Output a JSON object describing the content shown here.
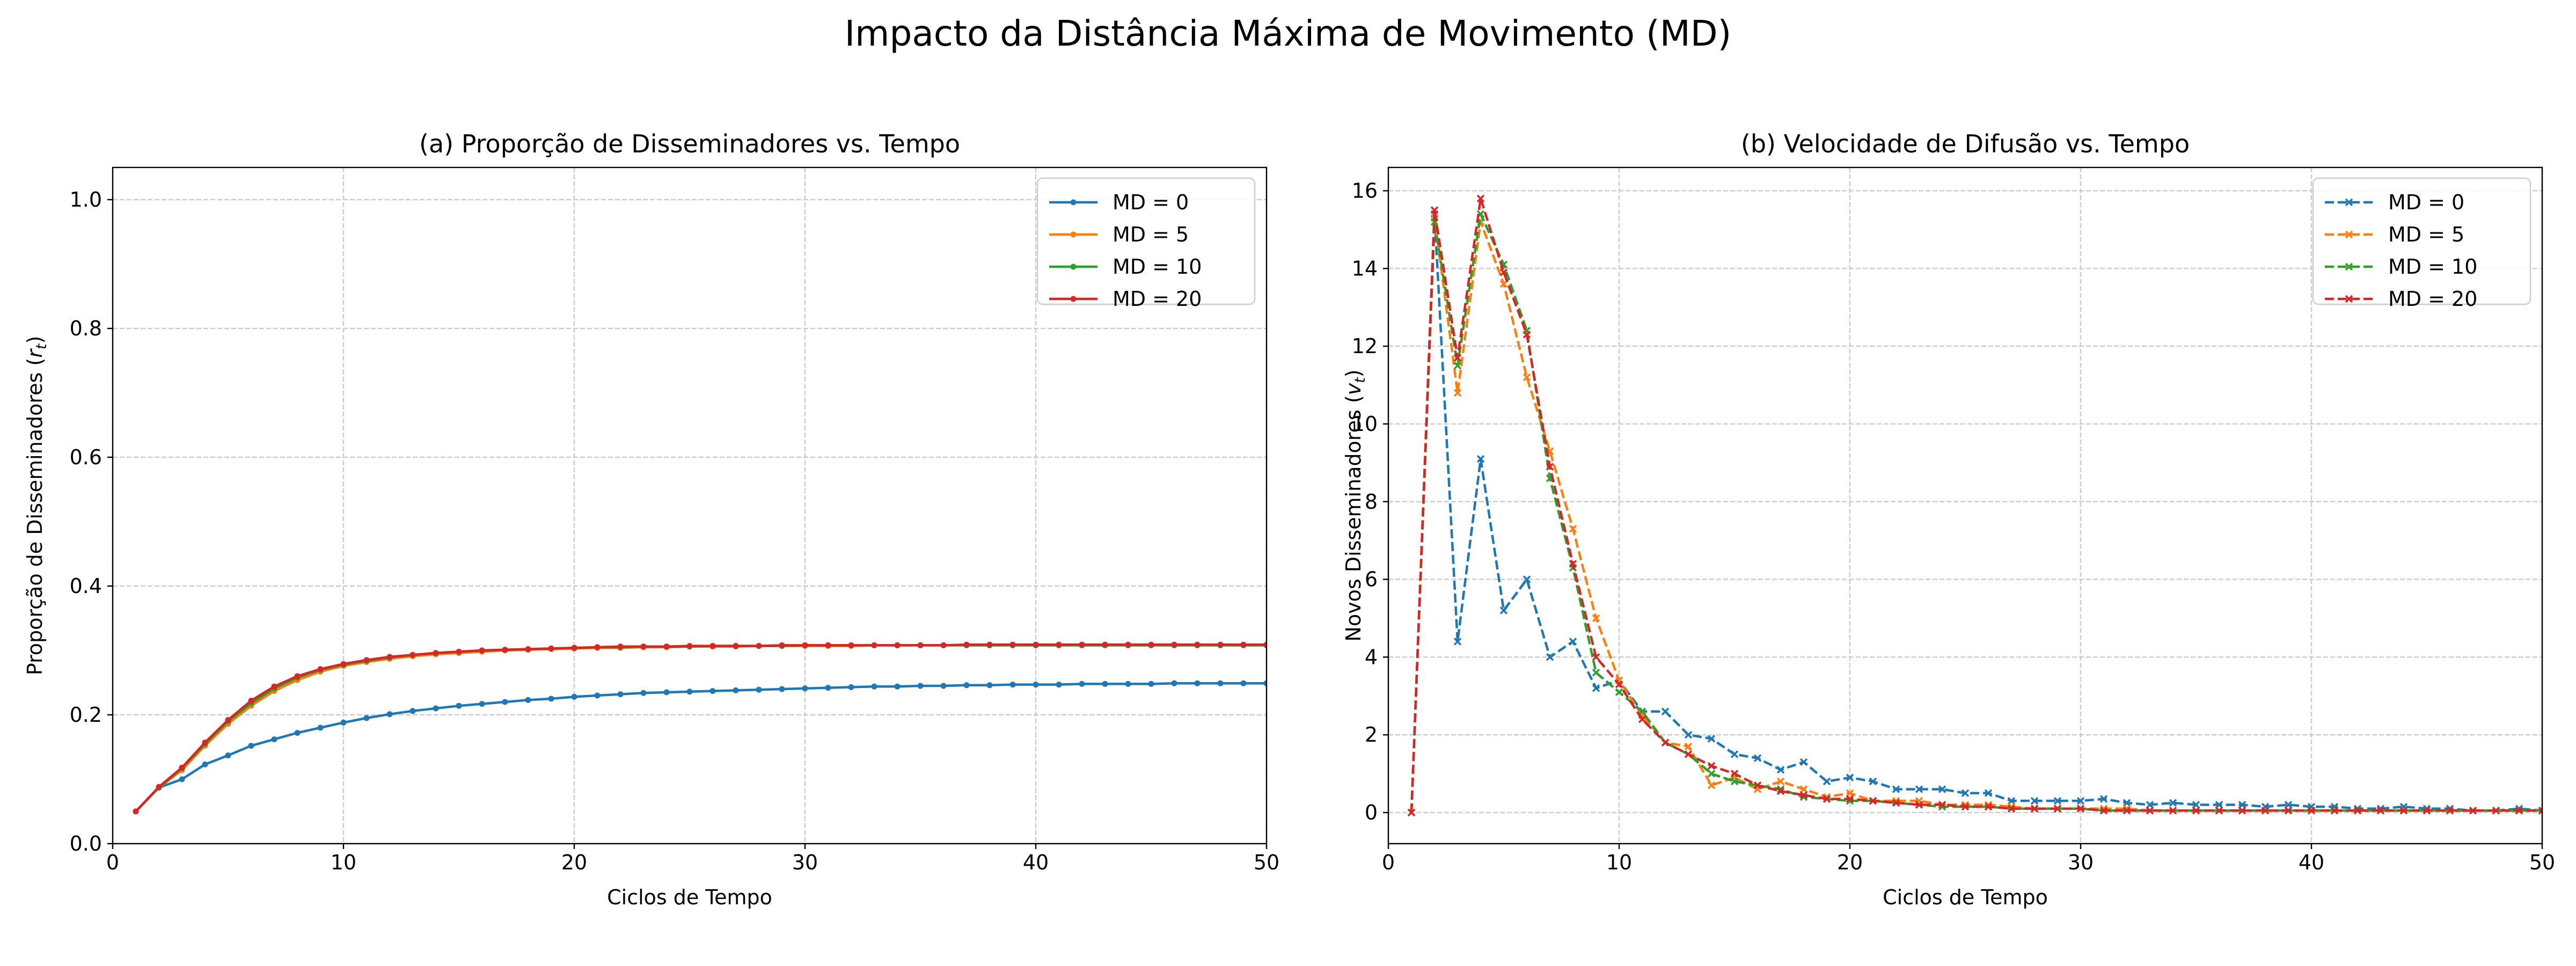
{
  "figure": {
    "title": "Impacto da Distância Máxima de Movimento (MD)"
  },
  "colors": {
    "md0": "#1f77b4",
    "md5": "#ff7f0e",
    "md10": "#2ca02c",
    "md20": "#d62728",
    "grid": "#cccccc"
  },
  "chart_data": [
    {
      "type": "line",
      "title": "(a) Proporção de Disseminadores vs. Tempo",
      "xlabel": "Ciclos de Tempo",
      "ylabel": "Proporção de Disseminadores (r_t)",
      "xlim": [
        0,
        50
      ],
      "ylim": [
        0,
        1.05
      ],
      "xticks": [
        0,
        10,
        20,
        30,
        40,
        50
      ],
      "yticks": [
        0.0,
        0.2,
        0.4,
        0.6,
        0.8,
        1.0
      ],
      "ytick_labels": [
        "0.0",
        "0.2",
        "0.4",
        "0.6",
        "0.8",
        "1.0"
      ],
      "grid": true,
      "legend": "top-right",
      "marker": "dot",
      "linestyle": "solid",
      "x": [
        1,
        2,
        3,
        4,
        5,
        6,
        7,
        8,
        9,
        10,
        11,
        12,
        13,
        14,
        15,
        16,
        17,
        18,
        19,
        20,
        21,
        22,
        23,
        24,
        25,
        26,
        27,
        28,
        29,
        30,
        31,
        32,
        33,
        34,
        35,
        36,
        37,
        38,
        39,
        40,
        41,
        42,
        43,
        44,
        45,
        46,
        47,
        48,
        49,
        50
      ],
      "series": [
        {
          "name": "MD = 0",
          "color": "#1f77b4",
          "values": [
            0.05,
            0.087,
            0.1,
            0.123,
            0.137,
            0.152,
            0.162,
            0.172,
            0.18,
            0.188,
            0.195,
            0.201,
            0.206,
            0.21,
            0.214,
            0.217,
            0.22,
            0.223,
            0.225,
            0.228,
            0.23,
            0.232,
            0.234,
            0.235,
            0.236,
            0.237,
            0.238,
            0.239,
            0.24,
            0.241,
            0.242,
            0.243,
            0.244,
            0.244,
            0.245,
            0.245,
            0.246,
            0.246,
            0.247,
            0.247,
            0.247,
            0.248,
            0.248,
            0.248,
            0.248,
            0.249,
            0.249,
            0.249,
            0.249,
            0.249
          ]
        },
        {
          "name": "MD = 5",
          "color": "#ff7f0e",
          "values": [
            0.05,
            0.087,
            0.114,
            0.152,
            0.186,
            0.214,
            0.237,
            0.254,
            0.267,
            0.276,
            0.282,
            0.287,
            0.291,
            0.294,
            0.296,
            0.298,
            0.3,
            0.301,
            0.302,
            0.303,
            0.304,
            0.304,
            0.305,
            0.305,
            0.306,
            0.306,
            0.306,
            0.307,
            0.307,
            0.307,
            0.307,
            0.307,
            0.308,
            0.308,
            0.308,
            0.308,
            0.308,
            0.308,
            0.308,
            0.308,
            0.308,
            0.308,
            0.308,
            0.308,
            0.308,
            0.308,
            0.308,
            0.308,
            0.308,
            0.308
          ]
        },
        {
          "name": "MD = 10",
          "color": "#2ca02c",
          "values": [
            0.05,
            0.087,
            0.117,
            0.155,
            0.19,
            0.218,
            0.241,
            0.258,
            0.27,
            0.278,
            0.284,
            0.289,
            0.293,
            0.296,
            0.298,
            0.3,
            0.301,
            0.302,
            0.303,
            0.304,
            0.305,
            0.305,
            0.306,
            0.306,
            0.306,
            0.307,
            0.307,
            0.307,
            0.307,
            0.308,
            0.308,
            0.308,
            0.308,
            0.308,
            0.308,
            0.308,
            0.308,
            0.308,
            0.308,
            0.308,
            0.308,
            0.308,
            0.308,
            0.308,
            0.308,
            0.308,
            0.308,
            0.308,
            0.308,
            0.308
          ]
        },
        {
          "name": "MD = 20",
          "color": "#d62728",
          "values": [
            0.05,
            0.088,
            0.118,
            0.157,
            0.192,
            0.222,
            0.244,
            0.26,
            0.271,
            0.279,
            0.285,
            0.29,
            0.293,
            0.296,
            0.298,
            0.3,
            0.301,
            0.302,
            0.303,
            0.304,
            0.305,
            0.306,
            0.306,
            0.306,
            0.307,
            0.307,
            0.307,
            0.307,
            0.308,
            0.308,
            0.308,
            0.308,
            0.308,
            0.308,
            0.308,
            0.308,
            0.309,
            0.309,
            0.309,
            0.309,
            0.309,
            0.309,
            0.309,
            0.309,
            0.309,
            0.309,
            0.309,
            0.309,
            0.309,
            0.309
          ]
        }
      ]
    },
    {
      "type": "line",
      "title": "(b) Velocidade de Difusão vs. Tempo",
      "xlabel": "Ciclos de Tempo",
      "ylabel": "Novos Disseminadores (v_t)",
      "xlim": [
        0,
        50
      ],
      "ylim": [
        -0.8,
        16.6
      ],
      "xticks": [
        0,
        10,
        20,
        30,
        40,
        50
      ],
      "yticks": [
        0,
        2,
        4,
        6,
        8,
        10,
        12,
        14,
        16
      ],
      "ytick_labels": [
        "0",
        "2",
        "4",
        "6",
        "8",
        "10",
        "12",
        "14",
        "16"
      ],
      "grid": true,
      "legend": "top-right",
      "marker": "x",
      "linestyle": "dashed",
      "x": [
        1,
        2,
        3,
        4,
        5,
        6,
        7,
        8,
        9,
        10,
        11,
        12,
        13,
        14,
        15,
        16,
        17,
        18,
        19,
        20,
        21,
        22,
        23,
        24,
        25,
        26,
        27,
        28,
        29,
        30,
        31,
        32,
        33,
        34,
        35,
        36,
        37,
        38,
        39,
        40,
        41,
        42,
        43,
        44,
        45,
        46,
        47,
        48,
        49,
        50
      ],
      "series": [
        {
          "name": "MD = 0",
          "color": "#1f77b4",
          "values": [
            0,
            15.4,
            4.4,
            9.1,
            5.2,
            6.0,
            4.0,
            4.4,
            3.2,
            3.4,
            2.6,
            2.6,
            2.0,
            1.9,
            1.5,
            1.4,
            1.1,
            1.3,
            0.8,
            0.9,
            0.8,
            0.6,
            0.6,
            0.6,
            0.5,
            0.5,
            0.3,
            0.3,
            0.3,
            0.3,
            0.35,
            0.25,
            0.2,
            0.25,
            0.2,
            0.2,
            0.2,
            0.15,
            0.2,
            0.15,
            0.15,
            0.1,
            0.1,
            0.15,
            0.1,
            0.1,
            0.05,
            0.05,
            0.1,
            0.05
          ]
        },
        {
          "name": "MD = 5",
          "color": "#ff7f0e",
          "values": [
            0,
            15.3,
            10.8,
            15.2,
            13.6,
            11.2,
            9.3,
            7.3,
            5.0,
            3.4,
            2.5,
            1.8,
            1.7,
            0.7,
            0.9,
            0.6,
            0.8,
            0.6,
            0.4,
            0.5,
            0.3,
            0.3,
            0.3,
            0.2,
            0.2,
            0.2,
            0.15,
            0.1,
            0.1,
            0.1,
            0.1,
            0.1,
            0.05,
            0.05,
            0.05,
            0.05,
            0.05,
            0.05,
            0.05,
            0.05,
            0.05,
            0.05,
            0.05,
            0.05,
            0.05,
            0.05,
            0.05,
            0.05,
            0.05,
            0.05
          ]
        },
        {
          "name": "MD = 10",
          "color": "#2ca02c",
          "values": [
            0,
            15.2,
            11.5,
            15.4,
            14.1,
            12.4,
            8.6,
            6.3,
            3.6,
            3.1,
            2.6,
            1.8,
            1.5,
            1.0,
            0.8,
            0.7,
            0.6,
            0.4,
            0.35,
            0.3,
            0.3,
            0.25,
            0.2,
            0.15,
            0.15,
            0.15,
            0.1,
            0.1,
            0.1,
            0.1,
            0.05,
            0.05,
            0.05,
            0.05,
            0.05,
            0.05,
            0.05,
            0.05,
            0.05,
            0.05,
            0.05,
            0.05,
            0.05,
            0.05,
            0.05,
            0.05,
            0.05,
            0.05,
            0.05,
            0.05
          ]
        },
        {
          "name": "MD = 20",
          "color": "#d62728",
          "values": [
            0,
            15.5,
            11.7,
            15.8,
            13.9,
            12.3,
            8.9,
            6.4,
            4.0,
            3.3,
            2.4,
            1.8,
            1.5,
            1.2,
            1.0,
            0.7,
            0.55,
            0.45,
            0.35,
            0.35,
            0.3,
            0.25,
            0.2,
            0.2,
            0.15,
            0.15,
            0.1,
            0.1,
            0.1,
            0.1,
            0.05,
            0.05,
            0.05,
            0.05,
            0.05,
            0.05,
            0.05,
            0.05,
            0.05,
            0.05,
            0.05,
            0.05,
            0.05,
            0.05,
            0.05,
            0.05,
            0.05,
            0.05,
            0.05,
            0.05
          ]
        }
      ]
    }
  ]
}
